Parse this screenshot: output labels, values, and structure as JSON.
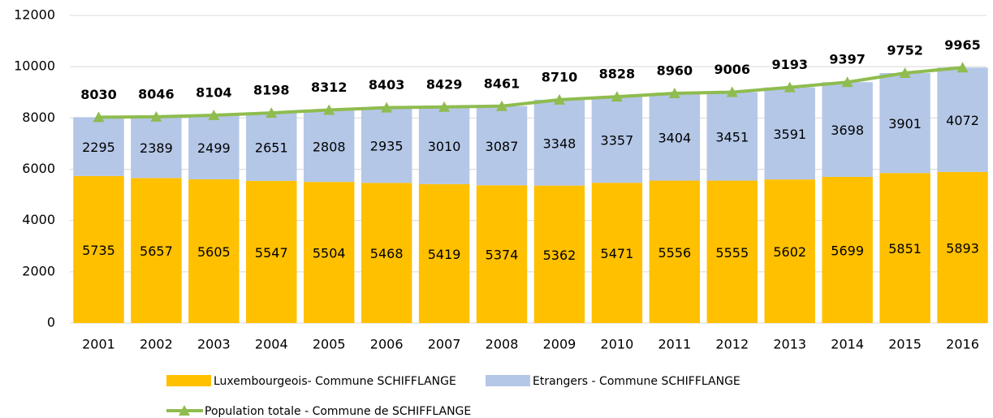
{
  "chart_data": {
    "type": "bar",
    "categories": [
      "2001",
      "2002",
      "2003",
      "2004",
      "2005",
      "2006",
      "2007",
      "2008",
      "2009",
      "2010",
      "2011",
      "2012",
      "2013",
      "2014",
      "2015",
      "2016"
    ],
    "series": [
      {
        "name": "Luxembourgeois- Commune SCHIFFLANGE",
        "type": "bar",
        "color": "#FFC000",
        "values": [
          5735,
          5657,
          5605,
          5547,
          5504,
          5468,
          5419,
          5374,
          5362,
          5471,
          5556,
          5555,
          5602,
          5699,
          5851,
          5893
        ]
      },
      {
        "name": "Etrangers - Commune  SCHIFFLANGE",
        "type": "bar",
        "color": "#B4C7E7",
        "values": [
          2295,
          2389,
          2499,
          2651,
          2808,
          2935,
          3010,
          3087,
          3348,
          3357,
          3404,
          3451,
          3591,
          3698,
          3901,
          4072
        ]
      },
      {
        "name": "Population totale - Commune de SCHIFFLANGE",
        "type": "line",
        "color": "#8FBC4F",
        "values": [
          8030,
          8046,
          8104,
          8198,
          8312,
          8403,
          8429,
          8461,
          8710,
          8828,
          8960,
          9006,
          9193,
          9397,
          9752,
          9965
        ]
      }
    ],
    "ylim": [
      0,
      12000
    ],
    "yticks": [
      0,
      2000,
      4000,
      6000,
      8000,
      10000,
      12000
    ],
    "grid": true,
    "stacked": true,
    "legend": "bottom"
  }
}
